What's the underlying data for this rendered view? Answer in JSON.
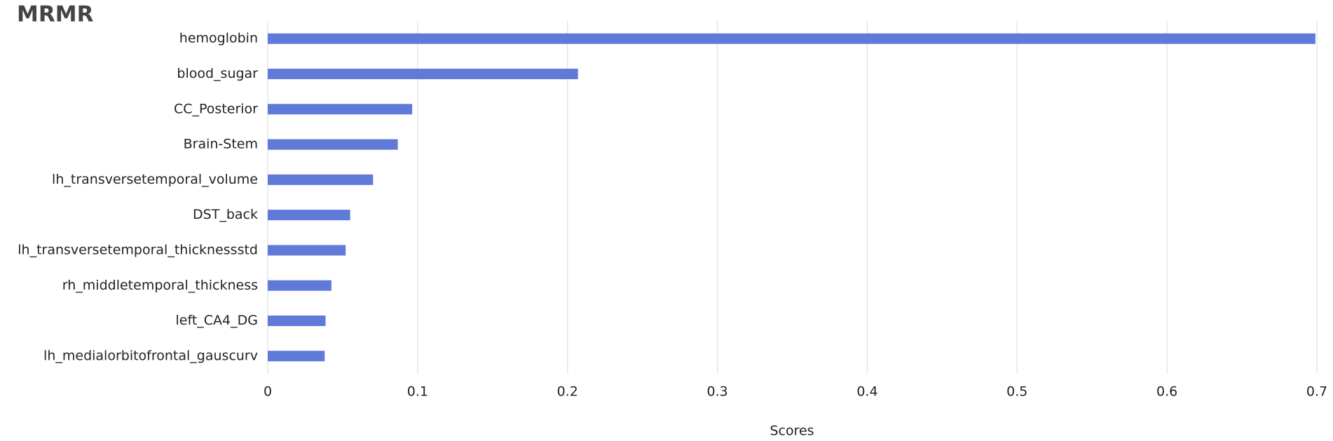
{
  "chart_data": {
    "type": "bar",
    "orientation": "horizontal",
    "title": "MRMR",
    "xlabel": "Scores",
    "categories": [
      "hemoglobin",
      "blood_sugar",
      "CC_Posterior",
      "Brain-Stem",
      "lh_transversetemporal_volume",
      "DST_back",
      "lh_transversetemporal_thicknessstd",
      "rh_middletemporal_thickness",
      "left_CA4_DG",
      "lh_medialorbitofrontal_gauscurv"
    ],
    "values": [
      0.699,
      0.207,
      0.0964,
      0.0868,
      0.0703,
      0.055,
      0.052,
      0.0425,
      0.0386,
      0.038
    ],
    "color": "#5f7ad9",
    "xlim": [
      0,
      0.7
    ],
    "xticks": [
      0,
      0.1,
      0.2,
      0.3,
      0.4,
      0.5,
      0.6,
      0.7
    ],
    "grid": true
  }
}
